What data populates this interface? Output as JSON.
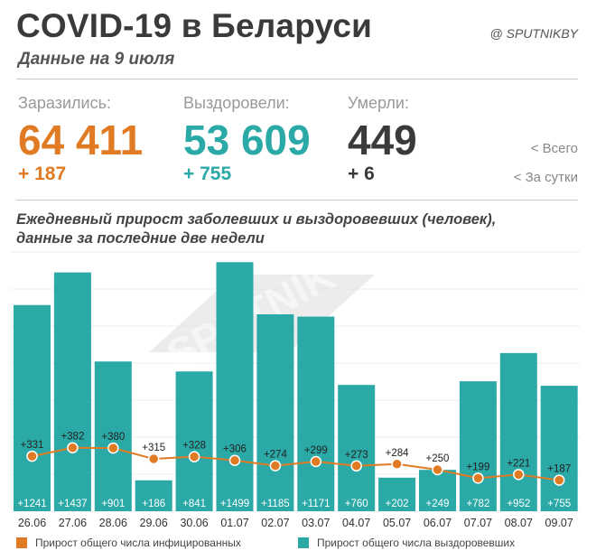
{
  "header": {
    "title": "COVID-19 в Беларуси",
    "subtitle": "Данные на 9 июля",
    "brand": "@ SPUTNIKBY"
  },
  "stats": {
    "infected": {
      "label": "Заразились:",
      "total": "64 411",
      "delta": "+ 187",
      "color": "#e07b24"
    },
    "recovered": {
      "label": "Выздоровели:",
      "total": "53 609",
      "delta": "+ 755",
      "color": "#2aa9a6"
    },
    "deaths": {
      "label": "Умерли:",
      "total": "449",
      "delta": "+ 6",
      "color": "#3a3a3a"
    },
    "legend_total": "<  Всего",
    "legend_daily": "<  За сутки"
  },
  "chart_title_line1": "Ежедневный прирост заболевших и выздоровевших (человек),",
  "chart_title_line2": "данные за последние две недели",
  "watermark": "SPUTNIK",
  "legend": {
    "infected": "Прирост общего числа инфицированных",
    "recovered": "Прирост общего числа выздоровевших"
  },
  "chart_data": {
    "type": "bar",
    "categories": [
      "26.06",
      "27.06",
      "28.06",
      "29.06",
      "30.06",
      "01.07",
      "02.07",
      "03.07",
      "04.07",
      "05.07",
      "06.07",
      "07.07",
      "08.07",
      "09.07"
    ],
    "series": [
      {
        "name": "Прирост общего числа выздоровевших",
        "type": "bar",
        "color": "#2aa9a6",
        "values": [
          1241,
          1437,
          901,
          186,
          841,
          1499,
          1185,
          1171,
          760,
          202,
          249,
          782,
          952,
          755
        ]
      },
      {
        "name": "Прирост общего числа инфицированных",
        "type": "line",
        "color": "#e07b24",
        "values": [
          331,
          382,
          380,
          315,
          328,
          306,
          274,
          299,
          273,
          284,
          250,
          199,
          221,
          187
        ]
      }
    ],
    "ylim": [
      0,
      1560
    ],
    "grid": true
  }
}
